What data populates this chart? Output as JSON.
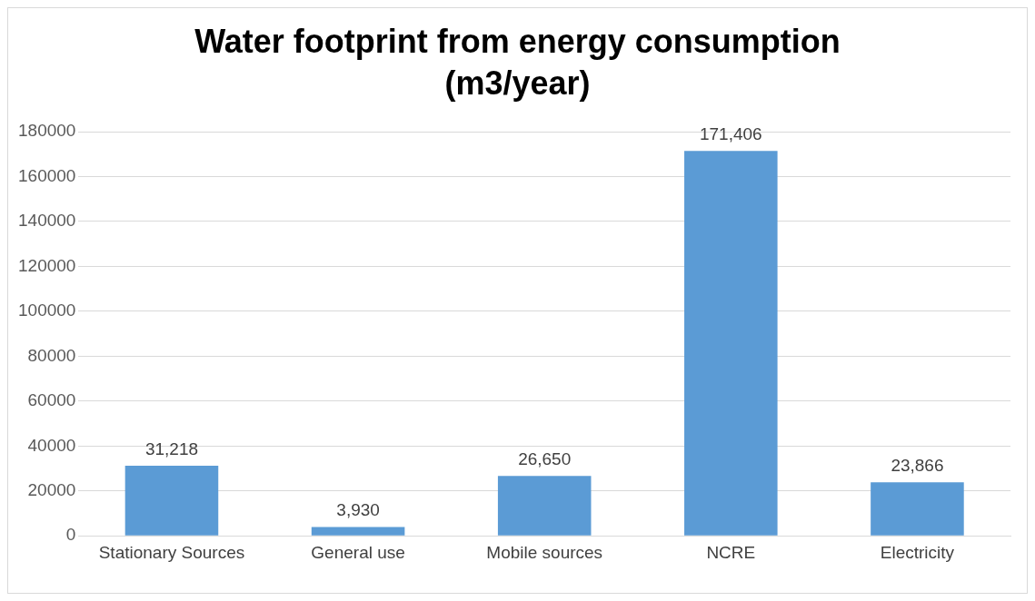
{
  "chart_data": {
    "type": "bar",
    "title": "Water footprint from energy consumption (m3/year)",
    "categories": [
      "Stationary Sources",
      "General use",
      "Mobile sources",
      "NCRE",
      "Electricity"
    ],
    "values": [
      31218,
      3930,
      26650,
      171406,
      23866
    ],
    "value_labels": [
      "31,218",
      "3,930",
      "26,650",
      "171,406",
      "23,866"
    ],
    "color": "#5b9bd5",
    "ylim": [
      0,
      180000
    ],
    "yticks": [
      0,
      20000,
      40000,
      60000,
      80000,
      100000,
      120000,
      140000,
      160000,
      180000
    ],
    "grid": "y",
    "legend": false
  }
}
